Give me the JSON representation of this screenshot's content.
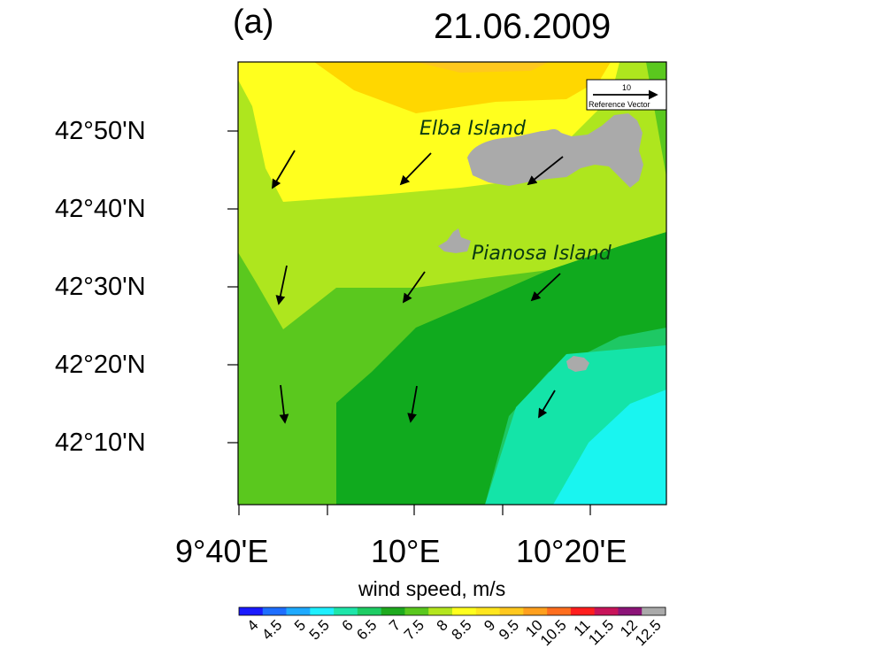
{
  "panel_label": "(a)",
  "date": "21.06.2009",
  "lat_labels": [
    "42°50'N",
    "42°40'N",
    "42°30'N",
    "42°20'N",
    "42°10'N"
  ],
  "lon_labels": [
    "9°40'E",
    "10°E",
    "10°20'E"
  ],
  "islands": {
    "elba": "Elba Island",
    "pianosa": "Pianosa Island"
  },
  "reference_vector": {
    "value": "10",
    "label": "Reference Vector"
  },
  "colorbar": {
    "title": "wind speed, m/s",
    "ticks": [
      "4",
      "4.5",
      "5",
      "5.5",
      "6",
      "6.5",
      "7",
      "7.5",
      "8",
      "8.5",
      "9",
      "9.5",
      "10",
      "10.5",
      "11",
      "11.5",
      "12",
      "12.5"
    ],
    "colors": [
      "#1a1aff",
      "#1e6eff",
      "#1eaaff",
      "#1ef0ff",
      "#1ee6aa",
      "#1ecd64",
      "#1eaa1e",
      "#5ac81e",
      "#b4e61e",
      "#ffff1e",
      "#ffe61e",
      "#ffc81e",
      "#ffa01e",
      "#ff6e1e",
      "#ff1e1e",
      "#c8145a",
      "#8c1478",
      "#aaaaaa"
    ]
  },
  "field_colors": {
    "speed_5": "#19f5f0",
    "speed_5_5": "#14e4a8",
    "speed_6": "#1ec864",
    "speed_6_5": "#10aa1e",
    "speed_7": "#5ac81e",
    "speed_7_5": "#aee61e",
    "speed_8": "#ffff1e",
    "speed_8_5": "#ffd700",
    "land": "#aaaaaa"
  }
}
